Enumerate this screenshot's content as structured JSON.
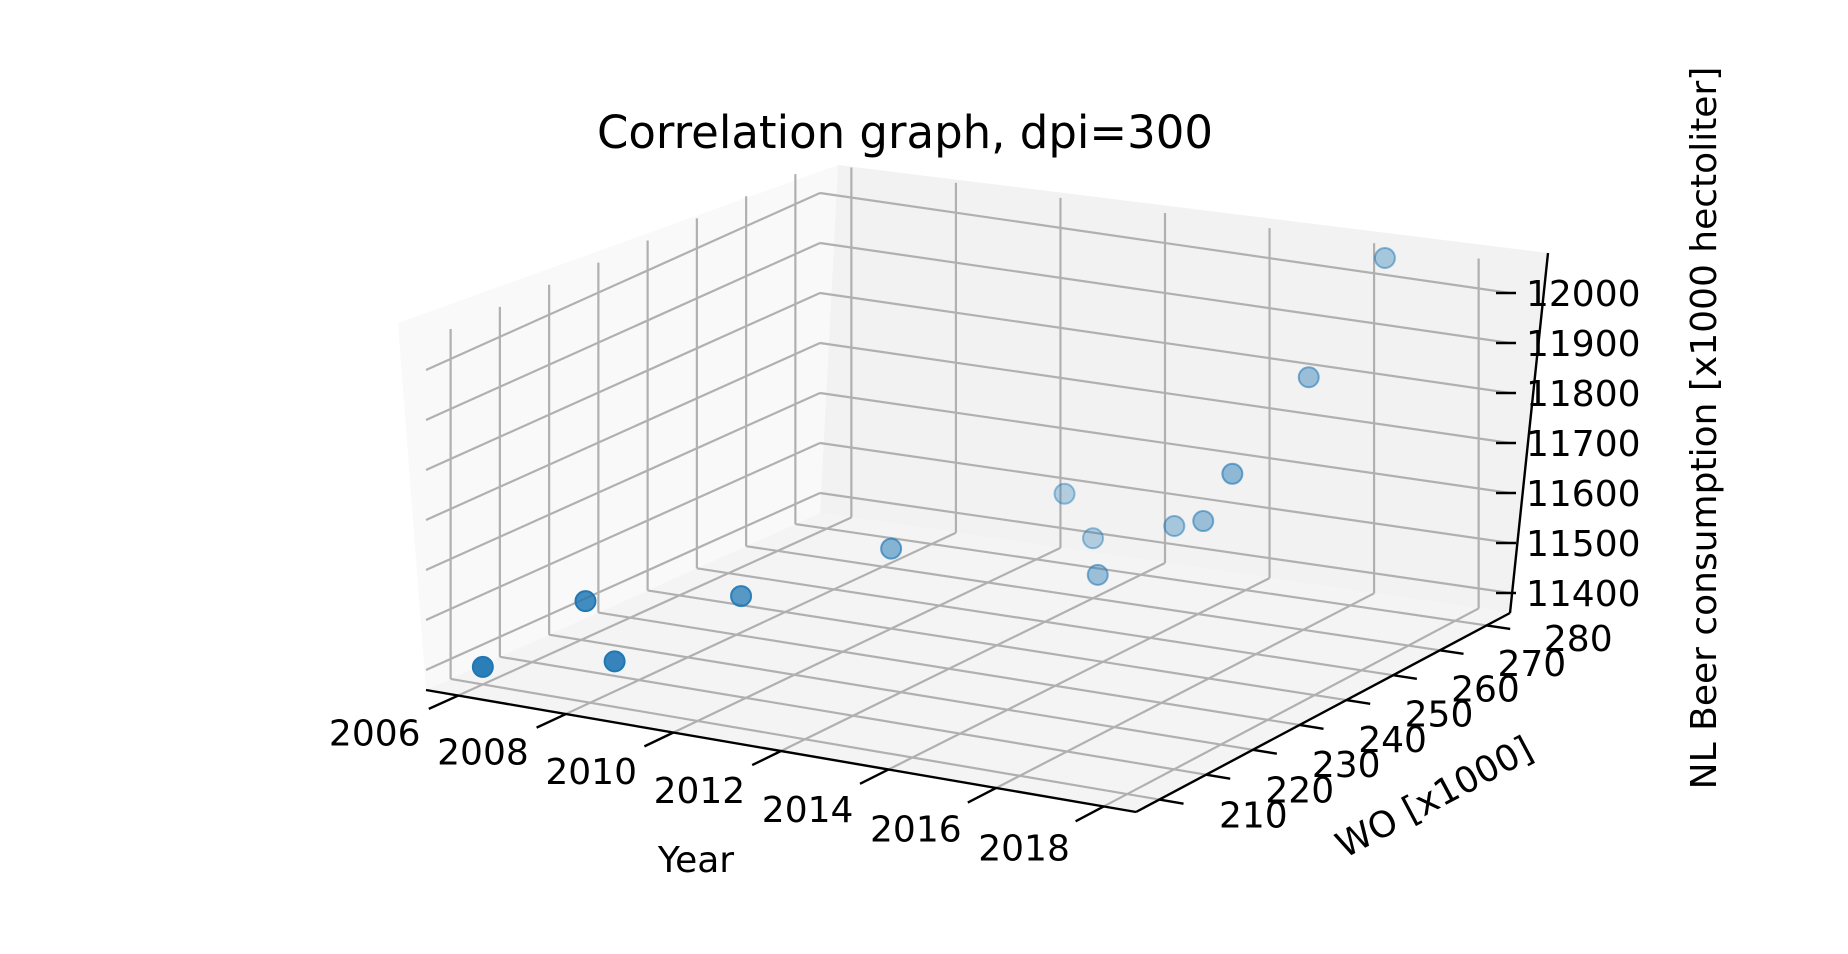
{
  "chart_data": {
    "type": "scatter",
    "projection": "3d",
    "title": "Correlation graph, dpi=300",
    "xlabel": "Year",
    "ylabel": "WO [x1000]",
    "zlabel": "NL Beer consumption [x1000 hectoliter]",
    "x_ticks": [
      "2006",
      "2008",
      "2010",
      "2012",
      "2014",
      "2016",
      "2018"
    ],
    "y_ticks": [
      "210",
      "220",
      "230",
      "240",
      "250",
      "260",
      "270",
      "280"
    ],
    "z_ticks": [
      "11400",
      "11500",
      "11600",
      "11700",
      "11800",
      "11900",
      "12000"
    ],
    "xlim": [
      2005.4,
      2018.6
    ],
    "ylim": [
      205,
      285
    ],
    "zlim": [
      11360,
      12060
    ],
    "grid": true,
    "marker_color": "#1f77b4",
    "points": [
      {
        "x": 2006,
        "y": 210,
        "z": 11395
      },
      {
        "x": 2007,
        "y": 220,
        "z": 11500
      },
      {
        "x": 2008,
        "y": 215,
        "z": 11420
      },
      {
        "x": 2009,
        "y": 230,
        "z": 11500
      },
      {
        "x": 2010,
        "y": 250,
        "z": 11520
      },
      {
        "x": 2011,
        "y": 275,
        "z": 11530
      },
      {
        "x": 2012,
        "y": 270,
        "z": 11480
      },
      {
        "x": 2013,
        "y": 260,
        "z": 11470
      },
      {
        "x": 2014,
        "y": 265,
        "z": 11560
      },
      {
        "x": 2015,
        "y": 260,
        "z": 11610
      },
      {
        "x": 2016,
        "y": 255,
        "z": 11745
      },
      {
        "x": 2017,
        "y": 260,
        "z": 11930
      },
      {
        "x": 2018,
        "y": 265,
        "z": 12160
      }
    ]
  }
}
